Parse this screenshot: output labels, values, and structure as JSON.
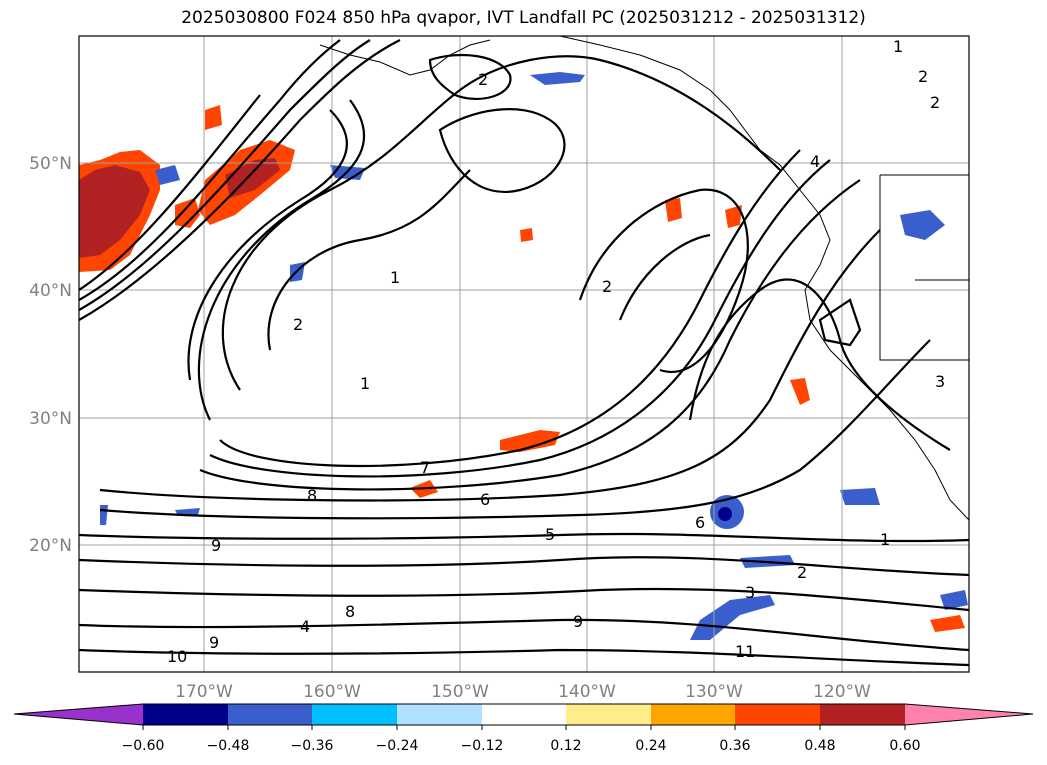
{
  "title": "2025030800 F024 850 hPa qvapor, IVT Landfall PC (2025031212 - 2025031312)",
  "lat_labels": [
    "50°N",
    "40°N",
    "30°N",
    "20°N"
  ],
  "lon_labels": [
    "170°W",
    "160°W",
    "150°W",
    "140°W",
    "130°W",
    "120°W"
  ],
  "colorbar": {
    "colors": [
      "#9932cc",
      "#00008b",
      "#3a5fcd",
      "#00bfff",
      "#b0e2ff",
      "#ffffff",
      "#ffec8b",
      "#ffa500",
      "#ff4500",
      "#b22222",
      "#ff82ab"
    ],
    "tick_labels": [
      "−0.60",
      "−0.48",
      "−0.36",
      "−0.24",
      "−0.12",
      "0.12",
      "0.24",
      "0.36",
      "0.48",
      "0.60"
    ]
  },
  "contour_labels": [
    "1",
    "2",
    "3",
    "4",
    "5",
    "6",
    "7",
    "8",
    "9",
    "10",
    "11"
  ]
}
